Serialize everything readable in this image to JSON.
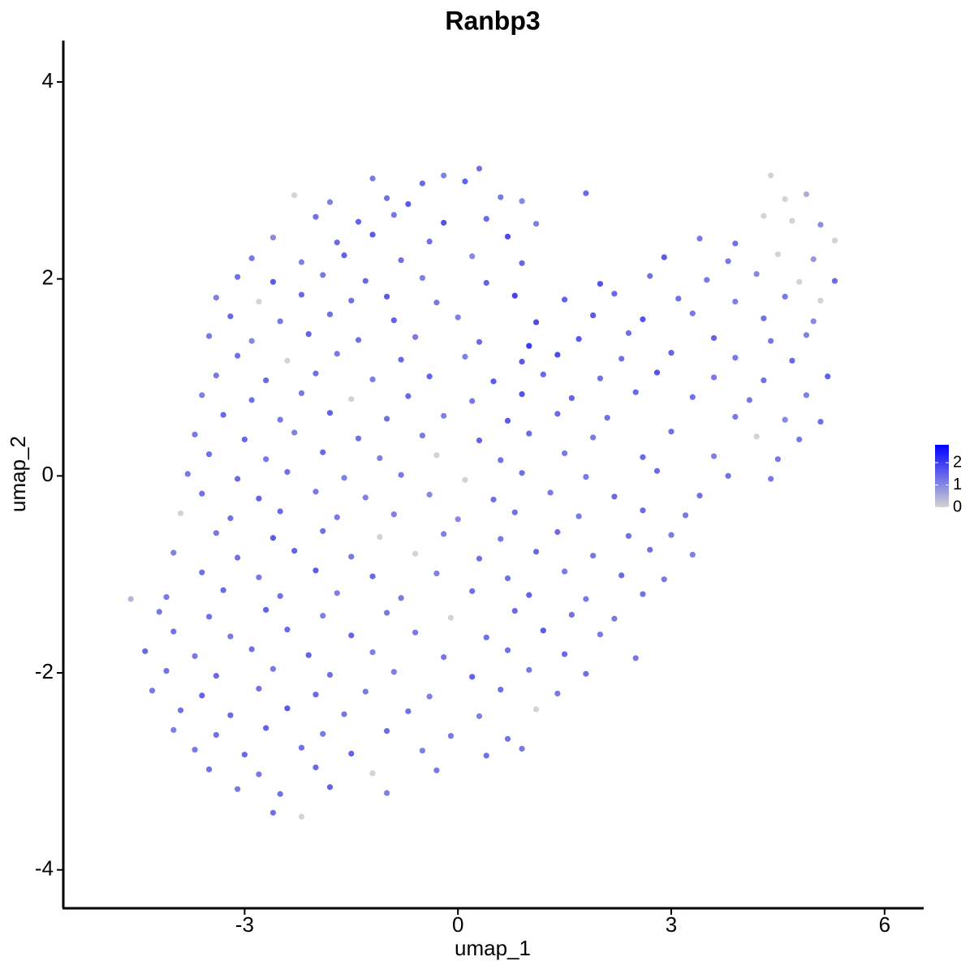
{
  "chart_data": {
    "type": "scatter",
    "title": "Ranbp3",
    "x_label": "umap_1",
    "y_label": "umap_2",
    "x": [
      -1.2,
      -0.5,
      -0.2,
      0.1,
      0.3,
      4.4,
      -2.3,
      -1.8,
      -1.0,
      -0.7,
      0.6,
      0.9,
      1.8,
      4.6,
      4.9,
      -2.0,
      -1.4,
      -0.9,
      -0.2,
      0.4,
      1.1,
      4.3,
      4.7,
      5.1,
      -2.6,
      -1.7,
      -1.2,
      -0.4,
      0.7,
      3.4,
      3.9,
      5.3,
      -2.9,
      -2.2,
      -1.6,
      -0.8,
      0.2,
      0.9,
      2.9,
      3.8,
      4.5,
      5.0,
      -3.1,
      -2.6,
      -1.9,
      -1.3,
      -0.5,
      0.4,
      2.0,
      2.7,
      3.5,
      4.2,
      4.8,
      5.3,
      -3.4,
      -2.8,
      -2.2,
      -1.5,
      -1.0,
      -0.3,
      0.8,
      1.5,
      2.2,
      3.1,
      3.9,
      4.6,
      5.1,
      -3.2,
      -2.5,
      -1.8,
      -0.9,
      0.0,
      1.1,
      1.9,
      2.6,
      3.3,
      4.3,
      5.0,
      -3.5,
      -2.9,
      -2.1,
      -1.4,
      -0.6,
      0.3,
      1.0,
      1.7,
      2.4,
      3.6,
      4.4,
      4.9,
      -3.1,
      -2.4,
      -1.7,
      -0.8,
      0.1,
      0.9,
      1.4,
      2.3,
      3.0,
      3.9,
      4.7,
      -3.4,
      -2.7,
      -2.0,
      -1.2,
      -0.4,
      0.5,
      1.2,
      2.0,
      2.8,
      3.6,
      4.3,
      5.2,
      -3.6,
      -2.9,
      -2.2,
      -1.5,
      -0.7,
      0.2,
      0.9,
      1.6,
      2.5,
      3.3,
      4.1,
      4.9,
      -3.3,
      -2.5,
      -1.8,
      -1.0,
      -0.2,
      0.7,
      1.4,
      2.1,
      3.9,
      4.6,
      5.1,
      -3.7,
      -3.0,
      -2.3,
      -1.4,
      -0.5,
      0.3,
      1.0,
      1.9,
      3.0,
      4.2,
      4.8,
      -3.5,
      -2.7,
      -1.9,
      -1.1,
      -0.3,
      0.6,
      1.5,
      2.6,
      3.6,
      4.5,
      -3.8,
      -3.1,
      -2.4,
      -1.6,
      -0.8,
      0.1,
      0.9,
      1.8,
      2.8,
      3.8,
      4.4,
      -3.6,
      -2.8,
      -2.0,
      -1.3,
      -0.4,
      0.5,
      1.3,
      2.2,
      3.4,
      -3.9,
      -3.2,
      -2.5,
      -1.7,
      -0.9,
      0.0,
      0.8,
      1.7,
      2.6,
      3.2,
      -3.4,
      -2.6,
      -1.9,
      -1.1,
      -0.2,
      0.6,
      1.4,
      2.4,
      3.0,
      -4.0,
      -3.1,
      -2.3,
      -1.5,
      -0.6,
      0.3,
      1.1,
      1.9,
      2.7,
      3.3,
      -3.6,
      -2.8,
      -2.0,
      -1.2,
      -0.3,
      0.7,
      1.5,
      2.3,
      2.9,
      -4.6,
      -4.1,
      -3.3,
      -2.5,
      -1.7,
      -0.8,
      0.2,
      1.0,
      1.8,
      2.6,
      -4.2,
      -3.5,
      -2.7,
      -1.9,
      -1.0,
      -0.1,
      0.8,
      1.6,
      2.2,
      -4.0,
      -3.2,
      -2.4,
      -1.5,
      -0.6,
      0.4,
      1.2,
      2.0,
      -4.4,
      -3.7,
      -2.9,
      -2.1,
      -1.2,
      -0.2,
      0.7,
      1.5,
      2.5,
      -4.1,
      -3.4,
      -2.6,
      -1.8,
      -0.9,
      0.2,
      1.0,
      1.8,
      -4.3,
      -3.6,
      -2.8,
      -2.0,
      -1.3,
      -0.4,
      0.6,
      1.4,
      -3.9,
      -3.2,
      -2.4,
      -1.6,
      -0.7,
      0.3,
      1.1,
      -4.0,
      -3.4,
      -2.7,
      -1.9,
      -1.0,
      -0.1,
      0.7,
      -3.7,
      -3.0,
      -2.2,
      -1.5,
      -0.5,
      0.4,
      0.9,
      -3.5,
      -2.8,
      -2.0,
      -1.2,
      -0.3,
      -3.1,
      -2.5,
      -1.8,
      -1.0,
      -2.6,
      -2.2
    ],
    "values": [
      3.02,
      2.97,
      3.05,
      2.99,
      3.12,
      3.05,
      2.85,
      2.78,
      2.82,
      2.76,
      2.83,
      2.79,
      2.87,
      2.81,
      2.86,
      2.63,
      2.58,
      2.65,
      2.57,
      2.61,
      2.56,
      2.64,
      2.59,
      2.55,
      2.42,
      2.37,
      2.45,
      2.38,
      2.43,
      2.41,
      2.36,
      2.39,
      2.21,
      2.17,
      2.24,
      2.19,
      2.23,
      2.16,
      2.22,
      2.18,
      2.25,
      2.2,
      2.02,
      1.97,
      2.04,
      1.98,
      2.01,
      1.96,
      1.95,
      2.03,
      1.99,
      2.05,
      1.97,
      1.98,
      1.81,
      1.77,
      1.84,
      1.78,
      1.82,
      1.76,
      1.83,
      1.79,
      1.85,
      1.8,
      1.77,
      1.82,
      1.78,
      1.62,
      1.57,
      1.64,
      1.58,
      1.61,
      1.56,
      1.63,
      1.59,
      1.65,
      1.6,
      1.57,
      1.42,
      1.37,
      1.44,
      1.38,
      1.41,
      1.36,
      1.32,
      1.39,
      1.45,
      1.4,
      1.37,
      1.43,
      1.22,
      1.17,
      1.24,
      1.18,
      1.21,
      1.16,
      1.23,
      1.19,
      1.25,
      1.2,
      1.17,
      1.02,
      0.97,
      1.04,
      0.98,
      1.01,
      0.96,
      1.03,
      0.99,
      1.05,
      1.0,
      0.97,
      1.01,
      0.82,
      0.77,
      0.84,
      0.78,
      0.81,
      0.76,
      0.83,
      0.79,
      0.85,
      0.8,
      0.77,
      0.82,
      0.62,
      0.57,
      0.64,
      0.58,
      0.61,
      0.56,
      0.63,
      0.59,
      0.6,
      0.57,
      0.55,
      0.42,
      0.37,
      0.44,
      0.38,
      0.41,
      0.36,
      0.43,
      0.39,
      0.45,
      0.4,
      0.37,
      0.22,
      0.17,
      0.24,
      0.18,
      0.21,
      0.16,
      0.23,
      0.19,
      0.2,
      0.17,
      0.02,
      -0.03,
      0.04,
      -0.02,
      0.01,
      -0.04,
      0.03,
      -0.01,
      0.05,
      0.0,
      -0.03,
      -0.18,
      -0.23,
      -0.16,
      -0.22,
      -0.19,
      -0.24,
      -0.17,
      -0.21,
      -0.2,
      -0.38,
      -0.43,
      -0.36,
      -0.42,
      -0.39,
      -0.44,
      -0.37,
      -0.41,
      -0.35,
      -0.4,
      -0.58,
      -0.63,
      -0.56,
      -0.62,
      -0.59,
      -0.64,
      -0.57,
      -0.61,
      -0.6,
      -0.78,
      -0.83,
      -0.76,
      -0.82,
      -0.79,
      -0.84,
      -0.77,
      -0.81,
      -0.75,
      -0.8,
      -0.98,
      -1.03,
      -0.96,
      -1.02,
      -0.99,
      -1.04,
      -0.97,
      -1.01,
      -1.05,
      -1.25,
      -1.23,
      -1.16,
      -1.22,
      -1.19,
      -1.24,
      -1.17,
      -1.21,
      -1.25,
      -1.2,
      -1.38,
      -1.43,
      -1.36,
      -1.42,
      -1.39,
      -1.44,
      -1.37,
      -1.41,
      -1.45,
      -1.58,
      -1.63,
      -1.56,
      -1.62,
      -1.59,
      -1.64,
      -1.57,
      -1.61,
      -1.78,
      -1.83,
      -1.76,
      -1.82,
      -1.79,
      -1.84,
      -1.77,
      -1.81,
      -1.85,
      -1.98,
      -2.03,
      -1.96,
      -2.02,
      -1.99,
      -2.04,
      -1.97,
      -2.01,
      -2.18,
      -2.23,
      -2.16,
      -2.22,
      -2.19,
      -2.24,
      -2.17,
      -2.21,
      -2.38,
      -2.43,
      -2.36,
      -2.42,
      -2.39,
      -2.44,
      -2.37,
      -2.58,
      -2.63,
      -2.56,
      -2.62,
      -2.59,
      -2.64,
      -2.67,
      -2.78,
      -2.83,
      -2.76,
      -2.82,
      -2.79,
      -2.84,
      -2.77,
      -2.98,
      -3.03,
      -2.96,
      -3.02,
      -2.99,
      -3.18,
      -3.23,
      -3.16,
      -3.22,
      -3.42,
      -3.46
    ],
    "expression": [
      1.2,
      1.4,
      1.1,
      1.5,
      1.3,
      0,
      0,
      1.1,
      1.3,
      1.6,
      1.2,
      1.0,
      1.4,
      0,
      0.5,
      1.3,
      1.5,
      1.2,
      1.7,
      1.4,
      1.1,
      0,
      0,
      0.9,
      1.0,
      1.4,
      1.6,
      1.3,
      1.8,
      1.2,
      1.3,
      0,
      1.2,
      1.1,
      1.5,
      1.3,
      1.0,
      1.4,
      1.6,
      1.2,
      0,
      0.8,
      1.3,
      1.6,
      1.2,
      1.4,
      1.1,
      1.5,
      1.7,
      1.3,
      1.2,
      1.0,
      0,
      1.4,
      1.1,
      0,
      1.4,
      1.3,
      1.6,
      1.2,
      1.9,
      1.5,
      1.4,
      1.3,
      1.1,
      1.2,
      0,
      1.4,
      1.2,
      1.3,
      1.5,
      1.1,
      1.8,
      1.6,
      1.7,
      1.2,
      1.3,
      1.0,
      1.2,
      1.0,
      1.5,
      1.3,
      1.2,
      1.4,
      2.0,
      1.6,
      1.3,
      1.5,
      1.2,
      1.1,
      1.3,
      0,
      1.2,
      1.4,
      1.1,
      1.6,
      1.8,
      1.3,
      1.5,
      1.2,
      1.4,
      1.2,
      1.4,
      1.3,
      1.1,
      1.5,
      1.6,
      1.4,
      1.3,
      1.7,
      1.2,
      1.3,
      1.5,
      1.1,
      1.3,
      1.2,
      0,
      1.4,
      1.2,
      1.7,
      1.5,
      1.4,
      1.3,
      1.2,
      1.1,
      1.4,
      1.2,
      1.5,
      1.3,
      1.1,
      1.6,
      1.4,
      1.3,
      1.2,
      1.0,
      1.3,
      1.2,
      1.4,
      1.1,
      1.3,
      1.2,
      1.5,
      1.4,
      1.2,
      1.3,
      0,
      1.2,
      1.3,
      1.2,
      1.4,
      1.1,
      0,
      1.3,
      1.2,
      1.4,
      1.1,
      1.2,
      1.2,
      1.4,
      1.3,
      1.1,
      1.2,
      0,
      1.3,
      1.2,
      1.4,
      1.3,
      1.2,
      1.3,
      1.5,
      1.2,
      1.1,
      1.0,
      1.3,
      1.2,
      1.4,
      1.3,
      0,
      1.3,
      1.4,
      1.2,
      1.1,
      1.0,
      1.3,
      1.2,
      1.4,
      1.2,
      1.2,
      1.6,
      1.3,
      0,
      1.1,
      1.2,
      1.4,
      1.3,
      1.2,
      1.1,
      1.3,
      1.5,
      1.2,
      0,
      1.3,
      1.4,
      1.2,
      1.3,
      1.1,
      1.3,
      1.2,
      1.6,
      1.4,
      1.1,
      1.3,
      1.2,
      1.4,
      1.2,
      0.4,
      1.2,
      1.4,
      1.3,
      1.1,
      1.2,
      1.3,
      1.5,
      1.2,
      1.3,
      1.2,
      1.3,
      1.5,
      1.1,
      1.2,
      0,
      1.4,
      1.3,
      1.2,
      1.3,
      1.2,
      1.4,
      1.5,
      1.2,
      1.3,
      1.6,
      1.2,
      1.4,
      1.2,
      1.3,
      1.5,
      1.1,
      1.2,
      1.3,
      1.4,
      1.2,
      1.3,
      1.4,
      1.2,
      1.3,
      1.1,
      1.5,
      1.2,
      1.3,
      1.2,
      1.5,
      1.3,
      1.4,
      1.2,
      1.1,
      1.3,
      1.2,
      1.3,
      1.4,
      1.6,
      1.2,
      1.3,
      1.1,
      0,
      1.1,
      1.3,
      1.5,
      1.2,
      1.4,
      1.2,
      1.3,
      1.2,
      1.4,
      1.3,
      1.5,
      1.1,
      1.3,
      1.2,
      1.3,
      1.2,
      1.4,
      0,
      1.2,
      1.2,
      1.3,
      1.5,
      1.1,
      1.3,
      0
    ],
    "xlim": [
      -5.55,
      6.55
    ],
    "ylim": [
      -4.39,
      4.42
    ],
    "xticks": [
      -3,
      0,
      3,
      6
    ],
    "yticks": [
      -4,
      -2,
      0,
      2,
      4
    ],
    "colorlim": [
      0,
      2.8
    ],
    "colorbar_ticks": [
      0,
      1,
      2
    ],
    "color_low": "#d3d3d3",
    "color_high": "#0000ff",
    "grid": false
  }
}
